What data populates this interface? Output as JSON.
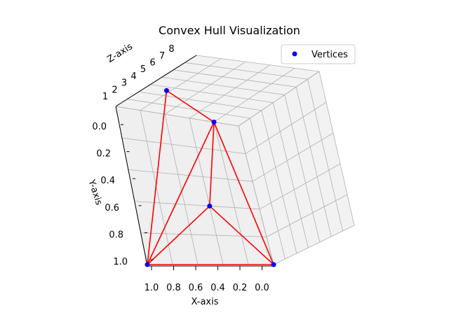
{
  "chart_data": {
    "type": "scatter3d",
    "title": "Convex Hull Visualization",
    "xlabel": "X-axis",
    "ylabel": "Y-axis",
    "zlabel": "Z-axis",
    "x_ticks": [
      "1.0",
      "0.8",
      "0.6",
      "0.4",
      "0.2",
      "0.0"
    ],
    "y_ticks": [
      "0.0",
      "0.2",
      "0.4",
      "0.6",
      "0.8",
      "1.0"
    ],
    "z_ticks": [
      "1",
      "2",
      "3",
      "4",
      "5",
      "6",
      "7",
      "8"
    ],
    "legend": {
      "label": "Vertices",
      "placement": "top-right"
    },
    "vertex_color": "#0000ff",
    "edge_color": "#ff0000",
    "grid": true,
    "vertices": [
      {
        "x": 1.0,
        "y": 0.0,
        "z": 8
      },
      {
        "x": 0.2,
        "y": 0.0,
        "z": 1
      },
      {
        "x": 1.0,
        "y": 1.0,
        "z": 1
      },
      {
        "x": 0.4,
        "y": 0.6,
        "z": 1
      },
      {
        "x": 0.0,
        "y": 1.0,
        "z": 1
      }
    ],
    "edges": [
      [
        0,
        1
      ],
      [
        0,
        2
      ],
      [
        1,
        2
      ],
      [
        1,
        3
      ],
      [
        1,
        4
      ],
      [
        2,
        3
      ],
      [
        3,
        4
      ],
      [
        2,
        4
      ]
    ]
  }
}
